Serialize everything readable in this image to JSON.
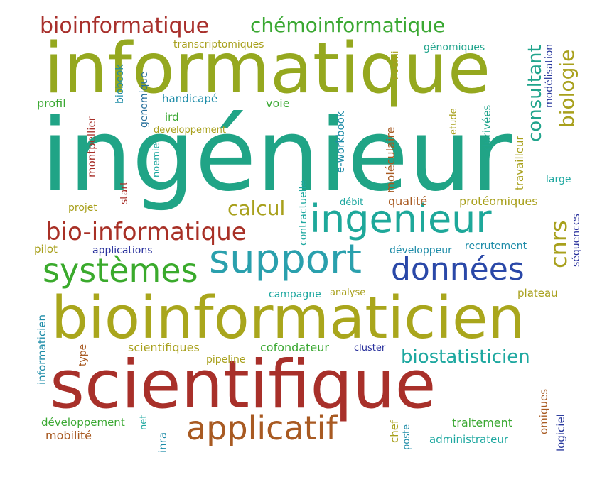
{
  "words": [
    {
      "text": "ingénieur",
      "color": "#20a486"
    },
    {
      "text": "informatique",
      "color": "#95a81f"
    },
    {
      "text": "bioinformaticien",
      "color": "#a9a61c"
    },
    {
      "text": "scientifique",
      "color": "#a8302a"
    },
    {
      "text": "applicatif",
      "color": "#a85a22"
    },
    {
      "text": "support",
      "color": "#2aa0ad"
    },
    {
      "text": "ingenieur",
      "color": "#1ea89a"
    },
    {
      "text": "systèmes",
      "color": "#3aaa2c"
    },
    {
      "text": "données",
      "color": "#2a48a8"
    },
    {
      "text": "bio-informatique",
      "color": "#a83026"
    },
    {
      "text": "bioinformatique",
      "color": "#a8302c"
    },
    {
      "text": "chémoinformatique",
      "color": "#3aa832"
    },
    {
      "text": "biostatisticien",
      "color": "#1ea8a0"
    },
    {
      "text": "calcul",
      "color": "#a8a01c"
    },
    {
      "text": "cnrs",
      "color": "#a8a01c"
    },
    {
      "text": "biologie",
      "color": "#a8a01c"
    },
    {
      "text": "consultant",
      "color": "#20a48c"
    },
    {
      "text": "transcriptomiques",
      "color": "#a8a01c"
    },
    {
      "text": "génomiques",
      "color": "#20a48c"
    },
    {
      "text": "modélisation",
      "color": "#28389c"
    },
    {
      "text": "noemi",
      "color": "#a8a01c"
    },
    {
      "text": "handicapé",
      "color": "#1e8ca8"
    },
    {
      "text": "profil",
      "color": "#3aa832"
    },
    {
      "text": "biobook",
      "color": "#1e8ca8"
    },
    {
      "text": "genomique",
      "color": "#28709c"
    },
    {
      "text": "voie",
      "color": "#3aa832"
    },
    {
      "text": "ird",
      "color": "#3aa832"
    },
    {
      "text": "developpement",
      "color": "#a8a01c"
    },
    {
      "text": "e-workbook",
      "color": "#1e8ca8"
    },
    {
      "text": "moléculaire",
      "color": "#a85a22"
    },
    {
      "text": "etude",
      "color": "#a8a01c"
    },
    {
      "text": "dérivées",
      "color": "#20a48c"
    },
    {
      "text": "travailleur",
      "color": "#a8a01c"
    },
    {
      "text": "montpellier",
      "color": "#a8302a"
    },
    {
      "text": "noemie",
      "color": "#1ea8a0"
    },
    {
      "text": "start",
      "color": "#a8302a"
    },
    {
      "text": "contractuelle",
      "color": "#1ea8a0"
    },
    {
      "text": "large",
      "color": "#1ea8a0"
    },
    {
      "text": "projet",
      "color": "#a8a01c"
    },
    {
      "text": "débit",
      "color": "#1ea8a0"
    },
    {
      "text": "qualité",
      "color": "#a85a22"
    },
    {
      "text": "protéomiques",
      "color": "#a8a01c"
    },
    {
      "text": "pilot",
      "color": "#a8a01c"
    },
    {
      "text": "applications",
      "color": "#28309c"
    },
    {
      "text": "développeur",
      "color": "#1e8ca8"
    },
    {
      "text": "recrutement",
      "color": "#1e8ca8"
    },
    {
      "text": "séquences",
      "color": "#28309c"
    },
    {
      "text": "informaticien",
      "color": "#1e8ca8"
    },
    {
      "text": "campagne",
      "color": "#1ea8a0"
    },
    {
      "text": "analyse",
      "color": "#a8a01c"
    },
    {
      "text": "plateau",
      "color": "#a8a01c"
    },
    {
      "text": "type",
      "color": "#a85a22"
    },
    {
      "text": "scientifiques",
      "color": "#a8a01c"
    },
    {
      "text": "cofondateur",
      "color": "#3aa832"
    },
    {
      "text": "cluster",
      "color": "#28309c"
    },
    {
      "text": "pipeline",
      "color": "#a8a01c"
    },
    {
      "text": "omiques",
      "color": "#a85a22"
    },
    {
      "text": "logiciel",
      "color": "#28389c"
    },
    {
      "text": "développement",
      "color": "#3aa832"
    },
    {
      "text": "net",
      "color": "#1ea8a0"
    },
    {
      "text": "chef",
      "color": "#a8a01c"
    },
    {
      "text": "poste",
      "color": "#1e8ca8"
    },
    {
      "text": "traitement",
      "color": "#3aa832"
    },
    {
      "text": "mobilité",
      "color": "#a85a22"
    },
    {
      "text": "inra",
      "color": "#1e8ca8"
    },
    {
      "text": "administrateur",
      "color": "#1ea8a0"
    }
  ]
}
